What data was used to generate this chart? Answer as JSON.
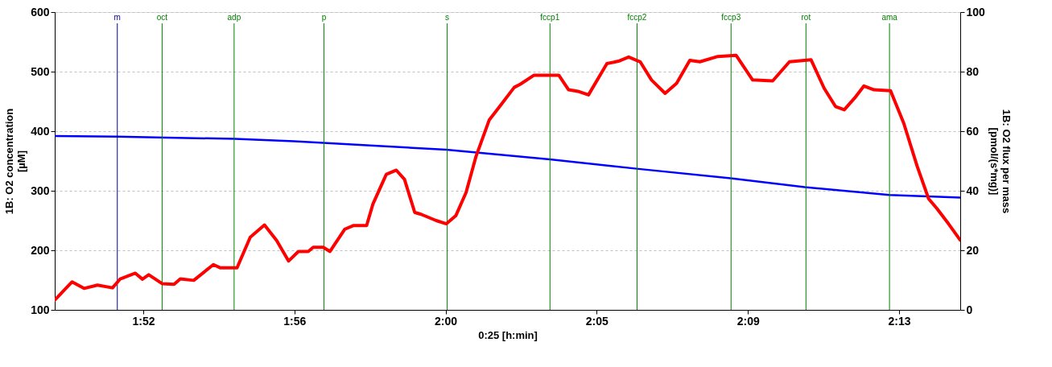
{
  "chart_data": {
    "type": "line",
    "xlabel": "0:25 [h:min]",
    "ylabel": "1B: O2 concentration [µM]",
    "y2label": "1B: O2 flux per mass [pmol/(s*mg)]",
    "xlim": [
      1.8188,
      2.2514
    ],
    "xticks": [
      {
        "value": 1.8611,
        "label": "1:52"
      },
      {
        "value": 1.9333,
        "label": "1:56"
      },
      {
        "value": 2.0055,
        "label": "2:00"
      },
      {
        "value": 2.0777,
        "label": "2:05"
      },
      {
        "value": 2.15,
        "label": "2:09"
      },
      {
        "value": 2.2222,
        "label": "2:13"
      }
    ],
    "ylim": [
      100,
      600
    ],
    "yticks": [
      100,
      200,
      300,
      400,
      500,
      600
    ],
    "y2lim": [
      0,
      100
    ],
    "y2ticks": [
      0,
      20,
      40,
      60,
      80,
      100
    ],
    "grid": "y",
    "line_style": "solid",
    "series": [
      {
        "color": "#0000ff",
        "x": [
          1.8188,
          1.8487,
          1.9048,
          1.9331,
          2.0059,
          2.0553,
          2.0968,
          2.1417,
          2.1771,
          2.2175,
          2.2514
        ],
        "values": [
          392,
          391,
          387,
          383,
          369,
          352.6,
          337,
          321,
          306,
          293,
          288.5
        ]
      },
      {
        "color": "#ff0000",
        "axis": "y2",
        "x": [
          1.8188,
          1.8271,
          1.8328,
          1.8392,
          1.8464,
          1.8501,
          1.8573,
          1.8607,
          1.8637,
          1.8701,
          1.8758,
          1.8788,
          1.8852,
          1.8946,
          1.898,
          1.9059,
          1.9122,
          1.919,
          1.9248,
          1.9305,
          1.9352,
          1.9399,
          1.9423,
          1.9471,
          1.9503,
          1.9574,
          1.9614,
          1.9678,
          1.9708,
          1.9772,
          1.982,
          1.9859,
          1.9908,
          1.9938,
          2.001,
          2.0059,
          2.0104,
          2.0153,
          2.0201,
          2.0264,
          2.0319,
          2.0383,
          2.0413,
          2.0478,
          2.0596,
          2.0643,
          2.0693,
          2.0738,
          2.0826,
          2.0881,
          2.093,
          2.0985,
          2.1039,
          2.1104,
          2.1159,
          2.1222,
          2.127,
          2.1356,
          2.1443,
          2.1522,
          2.1618,
          2.1698,
          2.1801,
          2.1864,
          2.1918,
          2.196,
          2.2015,
          2.2054,
          2.2102,
          2.2181,
          2.2244,
          2.2308,
          2.2363,
          2.2403,
          2.2458,
          2.2514
        ],
        "values": [
          3.3,
          9.4,
          7.2,
          8.3,
          7.4,
          10.4,
          12.3,
          10.3,
          11.8,
          8.8,
          8.6,
          10.4,
          9.9,
          15.2,
          14.1,
          14.1,
          24.4,
          28.5,
          23.3,
          16.4,
          19.6,
          19.6,
          21.0,
          21.0,
          19.6,
          27.1,
          28.3,
          28.3,
          35.5,
          45.5,
          46.9,
          43.8,
          32.7,
          32.1,
          30.0,
          28.9,
          31.6,
          39.4,
          51.6,
          63.8,
          68.8,
          74.7,
          75.8,
          78.8,
          78.8,
          73.9,
          73.3,
          72.2,
          82.7,
          83.5,
          84.9,
          83.3,
          77.2,
          72.7,
          76.1,
          83.8,
          83.3,
          85.1,
          85.5,
          77.2,
          76.9,
          83.3,
          84.0,
          74.4,
          68.3,
          67.2,
          71.6,
          75.2,
          73.9,
          73.6,
          62.7,
          48.3,
          37.3,
          34.0,
          28.9,
          23.4
        ]
      }
    ],
    "ref_lines": [
      {
        "axis": "x",
        "value": 1.8487,
        "label": "m",
        "color": "#0000a0"
      },
      {
        "axis": "x",
        "value": 1.8701,
        "label": "oct",
        "color": "#008000"
      },
      {
        "axis": "x",
        "value": 1.9045,
        "label": "adp",
        "color": "#008000"
      },
      {
        "axis": "x",
        "value": 1.9474,
        "label": "p",
        "color": "#008000"
      },
      {
        "axis": "x",
        "value": 2.0063,
        "label": "s",
        "color": "#008000"
      },
      {
        "axis": "x",
        "value": 2.0554,
        "label": "fccp1",
        "color": "#008000"
      },
      {
        "axis": "x",
        "value": 2.097,
        "label": "fccp2",
        "color": "#008000"
      },
      {
        "axis": "x",
        "value": 2.1419,
        "label": "fccp3",
        "color": "#008000"
      },
      {
        "axis": "x",
        "value": 2.1777,
        "label": "rot",
        "color": "#008000"
      },
      {
        "axis": "x",
        "value": 2.2176,
        "label": "ama",
        "color": "#008000"
      }
    ]
  }
}
